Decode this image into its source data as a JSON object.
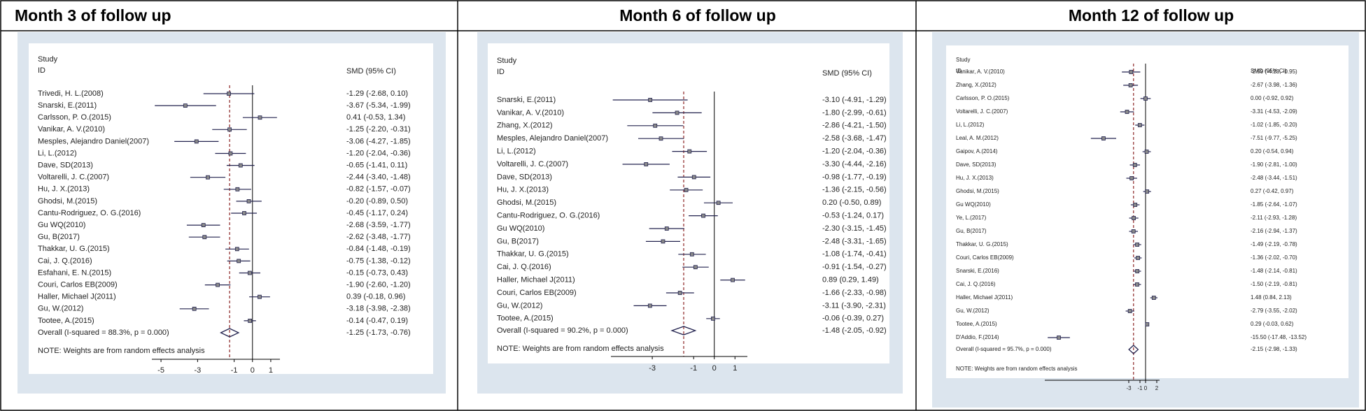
{
  "chart_data": [
    {
      "type": "forest",
      "title": "Month 3 of follow up",
      "study_header": "Study",
      "id_header": "ID",
      "effect_header": "SMD (95% CI)",
      "note": "NOTE: Weights are from random effects analysis",
      "categories": [
        "Trivedi, H. L.(2008)",
        "Snarski, E.(2011)",
        "Carlsson, P. O.(2015)",
        "Vanikar, A. V.(2010)",
        "Mesples, Alejandro Daniel(2007)",
        "Li, L.(2012)",
        "Dave, SD(2013)",
        "Voltarelli, J. C.(2007)",
        "Hu, J. X.(2013)",
        "Ghodsi, M.(2015)",
        "Cantu-Rodriguez, O. G.(2016)",
        "Gu WQ(2010)",
        "Gu, B(2017)",
        "Thakkar, U. G.(2015)",
        "Cai, J. Q.(2016)",
        "Esfahani, E. N.(2015)",
        "Couri, Carlos EB(2009)",
        "Haller, Michael J(2011)",
        "Gu, W.(2012)",
        "Tootee, A.(2015)"
      ],
      "values": [
        -1.29,
        -3.67,
        0.41,
        -1.25,
        -3.06,
        -1.2,
        -0.65,
        -2.44,
        -0.82,
        -0.2,
        -0.45,
        -2.68,
        -2.62,
        -0.84,
        -0.75,
        -0.15,
        -1.9,
        0.39,
        -3.18,
        -0.14
      ],
      "lower": [
        -2.68,
        -5.34,
        -0.53,
        -2.2,
        -4.27,
        -2.04,
        -1.41,
        -3.4,
        -1.57,
        -0.89,
        -1.17,
        -3.59,
        -3.48,
        -1.48,
        -1.38,
        -0.73,
        -2.6,
        -0.18,
        -3.98,
        -0.47
      ],
      "upper": [
        0.1,
        -1.99,
        1.34,
        -0.31,
        -1.85,
        -0.36,
        0.11,
        -1.48,
        -0.07,
        0.5,
        0.24,
        -1.77,
        -1.77,
        -0.19,
        -0.12,
        0.43,
        -1.2,
        0.96,
        -2.38,
        0.19
      ],
      "value_labels": [
        "-1.29 (-2.68, 0.10)",
        "-3.67 (-5.34, -1.99)",
        "0.41 (-0.53, 1.34)",
        "-1.25 (-2.20, -0.31)",
        "-3.06 (-4.27, -1.85)",
        "-1.20 (-2.04, -0.36)",
        "-0.65 (-1.41, 0.11)",
        "-2.44 (-3.40, -1.48)",
        "-0.82 (-1.57, -0.07)",
        "-0.20 (-0.89, 0.50)",
        "-0.45 (-1.17, 0.24)",
        "-2.68 (-3.59, -1.77)",
        "-2.62 (-3.48, -1.77)",
        "-0.84 (-1.48, -0.19)",
        "-0.75 (-1.38, -0.12)",
        "-0.15 (-0.73, 0.43)",
        "-1.90 (-2.60, -1.20)",
        "0.39 (-0.18, 0.96)",
        "-3.18 (-3.98, -2.38)",
        "-0.14 (-0.47, 0.19)"
      ],
      "overall": {
        "label": "Overall (I-squared = 88.3%, p = 0.000)",
        "value": -1.25,
        "lower": -1.73,
        "upper": -0.76,
        "value_label": "-1.25 (-1.73, -0.76)"
      },
      "xlim": [
        -5.5,
        1.5
      ],
      "xticks": [
        -5,
        -3,
        -1,
        0,
        1
      ],
      "color": "#23234f",
      "reference_line_color": "#8b2323"
    },
    {
      "type": "forest",
      "title": "Month 6 of follow up",
      "study_header": "Study",
      "id_header": "ID",
      "effect_header": "SMD (95% CI)",
      "note": "NOTE: Weights are from random effects analysis",
      "categories": [
        "Snarski, E.(2011)",
        "Vanikar, A. V.(2010)",
        "Zhang, X.(2012)",
        "Mesples, Alejandro Daniel(2007)",
        "Li, L.(2012)",
        "Voltarelli, J. C.(2007)",
        "Dave, SD(2013)",
        "Hu, J. X.(2013)",
        "Ghodsi, M.(2015)",
        "Cantu-Rodriguez, O. G.(2016)",
        "Gu WQ(2010)",
        "Gu, B(2017)",
        "Thakkar, U. G.(2015)",
        "Cai, J. Q.(2016)",
        "Haller, Michael J(2011)",
        "Couri, Carlos EB(2009)",
        "Gu, W.(2012)",
        "Tootee, A.(2015)"
      ],
      "values": [
        -3.1,
        -1.8,
        -2.86,
        -2.58,
        -1.2,
        -3.3,
        -0.98,
        -1.36,
        0.2,
        -0.53,
        -2.3,
        -2.48,
        -1.08,
        -0.91,
        0.89,
        -1.66,
        -3.11,
        -0.06
      ],
      "lower": [
        -4.91,
        -2.99,
        -4.21,
        -3.68,
        -2.04,
        -4.44,
        -1.77,
        -2.15,
        -0.5,
        -1.24,
        -3.15,
        -3.31,
        -1.74,
        -1.54,
        0.29,
        -2.33,
        -3.9,
        -0.39
      ],
      "upper": [
        -1.29,
        -0.61,
        -1.5,
        -1.47,
        -0.36,
        -2.16,
        -0.19,
        -0.56,
        0.89,
        0.17,
        -1.45,
        -1.65,
        -0.41,
        -0.27,
        1.49,
        -0.98,
        -2.31,
        0.27
      ],
      "value_labels": [
        "-3.10 (-4.91, -1.29)",
        "-1.80 (-2.99, -0.61)",
        "-2.86 (-4.21, -1.50)",
        "-2.58 (-3.68, -1.47)",
        "-1.20 (-2.04, -0.36)",
        "-3.30 (-4.44, -2.16)",
        "-0.98 (-1.77, -0.19)",
        "-1.36 (-2.15, -0.56)",
        "0.20 (-0.50, 0.89)",
        "-0.53 (-1.24, 0.17)",
        "-2.30 (-3.15, -1.45)",
        "-2.48 (-3.31, -1.65)",
        "-1.08 (-1.74, -0.41)",
        "-0.91 (-1.54, -0.27)",
        "0.89 (0.29, 1.49)",
        "-1.66 (-2.33, -0.98)",
        "-3.11 (-3.90, -2.31)",
        "-0.06 (-0.39, 0.27)"
      ],
      "overall": {
        "label": "Overall (I-squared = 90.2%, p = 0.000)",
        "value": -1.48,
        "lower": -2.05,
        "upper": -0.92,
        "value_label": "-1.48 (-2.05, -0.92)"
      },
      "xlim": [
        -5,
        1.6
      ],
      "xticks": [
        -3,
        -1,
        0,
        1
      ],
      "color": "#23234f",
      "reference_line_color": "#8b2323"
    },
    {
      "type": "forest",
      "title": "Month 12 of follow up",
      "study_header": "Study",
      "id_header": "ID",
      "effect_header": "SMD (95% CI)",
      "note": "NOTE: Weights are from random effects analysis",
      "categories": [
        "Vanikar, A. V.(2010)",
        "Zhang, X.(2012)",
        "Carlsson, P. O.(2015)",
        "Voltarelli, J. C.(2007)",
        "Li, L.(2012)",
        "Leal, A. M.(2012)",
        "Gaipov, A.(2014)",
        "Dave, SD(2013)",
        "Hu, J. X.(2013)",
        "Ghodsi, M.(2015)",
        "Gu WQ(2010)",
        "Ye, L.(2017)",
        "Gu, B(2017)",
        "Thakkar, U. G.(2015)",
        "Couri, Carlos EB(2009)",
        "Snarski, E.(2016)",
        "Cai, J. Q.(2016)",
        "Haller, Michael J(2011)",
        "Gu, W.(2012)",
        "Tootee, A.(2015)",
        "D'Addio, F.(2014)"
      ],
      "values": [
        -2.59,
        -2.67,
        0.0,
        -3.31,
        -1.02,
        -7.51,
        0.2,
        -1.9,
        -2.48,
        0.27,
        -1.85,
        -2.11,
        -2.16,
        -1.49,
        -1.36,
        -1.48,
        -1.5,
        1.48,
        -2.79,
        0.29,
        -15.5
      ],
      "lower": [
        -4.23,
        -3.98,
        -0.92,
        -4.53,
        -1.85,
        -9.77,
        -0.54,
        -2.81,
        -3.44,
        -0.42,
        -2.64,
        -2.93,
        -2.94,
        -2.19,
        -2.02,
        -2.14,
        -2.19,
        0.84,
        -3.55,
        -0.03,
        -17.48
      ],
      "upper": [
        -0.95,
        -1.36,
        0.92,
        -2.09,
        -0.2,
        -5.25,
        0.94,
        -1.0,
        -1.51,
        0.97,
        -1.07,
        -1.28,
        -1.37,
        -0.78,
        -0.7,
        -0.81,
        -0.81,
        2.13,
        -2.02,
        0.62,
        -13.52
      ],
      "value_labels": [
        "-2.59 (-4.23, -0.95)",
        "-2.67 (-3.98, -1.36)",
        "0.00 (-0.92, 0.92)",
        "-3.31 (-4.53, -2.09)",
        "-1.02 (-1.85, -0.20)",
        "-7.51 (-9.77, -5.25)",
        "0.20 (-0.54, 0.94)",
        "-1.90 (-2.81, -1.00)",
        "-2.48 (-3.44, -1.51)",
        "0.27 (-0.42, 0.97)",
        "-1.85 (-2.64, -1.07)",
        "-2.11 (-2.93, -1.28)",
        "-2.16 (-2.94, -1.37)",
        "-1.49 (-2.19, -0.78)",
        "-1.36 (-2.02, -0.70)",
        "-1.48 (-2.14, -0.81)",
        "-1.50 (-2.19, -0.81)",
        "1.48 (0.84, 2.13)",
        "-2.79 (-3.55, -2.02)",
        "0.29 (-0.03, 0.62)",
        "-15.50 (-17.48, -13.52)"
      ],
      "overall": {
        "label": "Overall (I-squared = 95.7%, p = 0.000)",
        "value": -2.15,
        "lower": -2.98,
        "upper": -1.33,
        "value_label": "-2.15 (-2.98, -1.33)"
      },
      "xlim": [
        -18,
        2.5
      ],
      "xticks": [
        -3,
        -1,
        0,
        2
      ],
      "color": "#23234f",
      "reference_line_color": "#8b2323"
    }
  ]
}
